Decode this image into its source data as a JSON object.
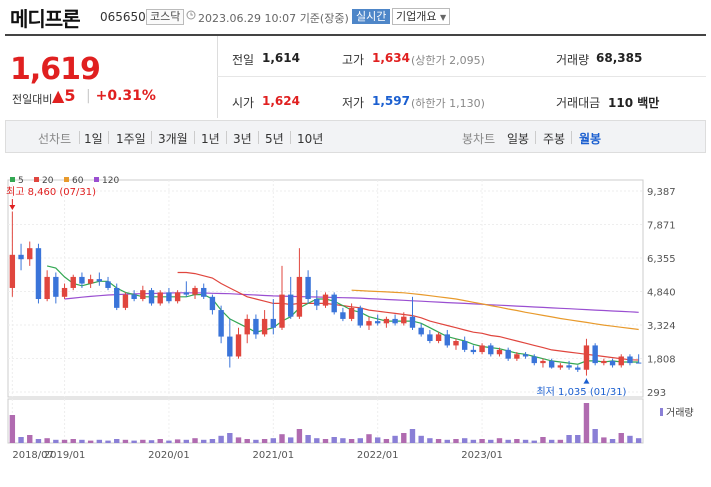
{
  "stock": {
    "name": "메디프론",
    "code": "065650",
    "market": "코스닥",
    "datetime": "2023.06.29 10:07",
    "as_of": "기준(장중)",
    "realtime_btn": "실시간",
    "company_info_btn": "기업개요"
  },
  "quote": {
    "price": "1,619",
    "change_label": "전일대비",
    "change_arrow": "▲",
    "change_value": "5",
    "change_pct": "+0.31%",
    "prev_close_label": "전일",
    "prev_close": "1,614",
    "high_label": "고가",
    "high": "1,634",
    "upper_limit": "(상한가 2,095)",
    "volume_label": "거래량",
    "volume": "68,385",
    "open_label": "시가",
    "open": "1,624",
    "low_label": "저가",
    "low": "1,597",
    "lower_limit": "(하한가 1,130)",
    "value_label": "거래대금",
    "value": "110 백만"
  },
  "toolbar": {
    "line_chart": "선차트",
    "periods": [
      "1일",
      "1주일",
      "3개월",
      "1년",
      "3년",
      "5년",
      "10년"
    ],
    "candle_chart": "봉차트",
    "candle_periods": [
      "일봉",
      "주봉",
      "월봉"
    ],
    "active_candle": "월봉"
  },
  "chart_data": {
    "type": "candlestick",
    "legend": [
      {
        "name": "5",
        "color": "#33a853"
      },
      {
        "name": "20",
        "color": "#e0463e"
      },
      {
        "name": "60",
        "color": "#e89a2c"
      },
      {
        "name": "120",
        "color": "#9a4fd1"
      }
    ],
    "yticks": [
      "9,387",
      "7,871",
      "6,355",
      "4,840",
      "3,324",
      "1,808",
      "293"
    ],
    "ylim": [
      293,
      9387
    ],
    "xticks": [
      "2018/07",
      "2019/01",
      "2020/01",
      "2021/01",
      "2022/01",
      "2023/01"
    ],
    "high_marker": "최고 8,460 (07/31)",
    "low_marker": "최저 1,035 (01/31)",
    "volume_label": "거래량",
    "candles": [
      {
        "o": 5000,
        "h": 8460,
        "l": 4600,
        "c": 6500
      },
      {
        "o": 6500,
        "h": 7000,
        "l": 5800,
        "c": 6300
      },
      {
        "o": 6300,
        "h": 7100,
        "l": 6000,
        "c": 6800
      },
      {
        "o": 6800,
        "h": 7000,
        "l": 4300,
        "c": 4500
      },
      {
        "o": 4500,
        "h": 5800,
        "l": 4400,
        "c": 5500
      },
      {
        "o": 5500,
        "h": 5700,
        "l": 4300,
        "c": 4600
      },
      {
        "o": 4600,
        "h": 5200,
        "l": 4500,
        "c": 5000
      },
      {
        "o": 5000,
        "h": 5600,
        "l": 4900,
        "c": 5500
      },
      {
        "o": 5500,
        "h": 5700,
        "l": 5000,
        "c": 5200
      },
      {
        "o": 5200,
        "h": 5600,
        "l": 5000,
        "c": 5400
      },
      {
        "o": 5400,
        "h": 5700,
        "l": 5100,
        "c": 5300
      },
      {
        "o": 5300,
        "h": 5500,
        "l": 4900,
        "c": 5000
      },
      {
        "o": 5000,
        "h": 5200,
        "l": 4000,
        "c": 4100
      },
      {
        "o": 4100,
        "h": 4800,
        "l": 4000,
        "c": 4700
      },
      {
        "o": 4700,
        "h": 4900,
        "l": 4400,
        "c": 4500
      },
      {
        "o": 4500,
        "h": 5100,
        "l": 4400,
        "c": 4900
      },
      {
        "o": 4900,
        "h": 5000,
        "l": 4200,
        "c": 4300
      },
      {
        "o": 4300,
        "h": 4900,
        "l": 4200,
        "c": 4800
      },
      {
        "o": 4800,
        "h": 5000,
        "l": 4300,
        "c": 4400
      },
      {
        "o": 4400,
        "h": 4900,
        "l": 4300,
        "c": 4800
      },
      {
        "o": 4800,
        "h": 5300,
        "l": 4600,
        "c": 4700
      },
      {
        "o": 4700,
        "h": 5100,
        "l": 4500,
        "c": 5000
      },
      {
        "o": 5000,
        "h": 5200,
        "l": 4500,
        "c": 4600
      },
      {
        "o": 4600,
        "h": 4700,
        "l": 3800,
        "c": 4000
      },
      {
        "o": 4000,
        "h": 4200,
        "l": 2500,
        "c": 2800
      },
      {
        "o": 2800,
        "h": 3600,
        "l": 1400,
        "c": 1900
      },
      {
        "o": 1900,
        "h": 3200,
        "l": 1800,
        "c": 2900
      },
      {
        "o": 2900,
        "h": 3800,
        "l": 2500,
        "c": 3600
      },
      {
        "o": 3600,
        "h": 3800,
        "l": 2700,
        "c": 2900
      },
      {
        "o": 2900,
        "h": 4000,
        "l": 2800,
        "c": 3600
      },
      {
        "o": 3600,
        "h": 4500,
        "l": 2900,
        "c": 3200
      },
      {
        "o": 3200,
        "h": 6000,
        "l": 3100,
        "c": 4700
      },
      {
        "o": 4700,
        "h": 5500,
        "l": 3600,
        "c": 3700
      },
      {
        "o": 3700,
        "h": 6800,
        "l": 3600,
        "c": 5500
      },
      {
        "o": 5500,
        "h": 5800,
        "l": 4300,
        "c": 4500
      },
      {
        "o": 4500,
        "h": 4900,
        "l": 4000,
        "c": 4200
      },
      {
        "o": 4200,
        "h": 4800,
        "l": 4100,
        "c": 4700
      },
      {
        "o": 4700,
        "h": 4800,
        "l": 3800,
        "c": 3900
      },
      {
        "o": 3900,
        "h": 4100,
        "l": 3500,
        "c": 3600
      },
      {
        "o": 3600,
        "h": 4300,
        "l": 3500,
        "c": 4100
      },
      {
        "o": 4100,
        "h": 4200,
        "l": 3200,
        "c": 3300
      },
      {
        "o": 3300,
        "h": 3700,
        "l": 3100,
        "c": 3500
      },
      {
        "o": 3500,
        "h": 3800,
        "l": 3300,
        "c": 3400
      },
      {
        "o": 3400,
        "h": 3700,
        "l": 3200,
        "c": 3600
      },
      {
        "o": 3600,
        "h": 3800,
        "l": 3300,
        "c": 3400
      },
      {
        "o": 3400,
        "h": 3900,
        "l": 3300,
        "c": 3700
      },
      {
        "o": 3700,
        "h": 4600,
        "l": 3100,
        "c": 3200
      },
      {
        "o": 3200,
        "h": 3400,
        "l": 2800,
        "c": 2900
      },
      {
        "o": 2900,
        "h": 3100,
        "l": 2500,
        "c": 2600
      },
      {
        "o": 2600,
        "h": 3000,
        "l": 2500,
        "c": 2900
      },
      {
        "o": 2900,
        "h": 3100,
        "l": 2300,
        "c": 2400
      },
      {
        "o": 2400,
        "h": 2700,
        "l": 2200,
        "c": 2600
      },
      {
        "o": 2600,
        "h": 2800,
        "l": 2100,
        "c": 2200
      },
      {
        "o": 2200,
        "h": 2400,
        "l": 2000,
        "c": 2100
      },
      {
        "o": 2100,
        "h": 2500,
        "l": 2000,
        "c": 2400
      },
      {
        "o": 2400,
        "h": 2500,
        "l": 1900,
        "c": 2000
      },
      {
        "o": 2000,
        "h": 2300,
        "l": 1900,
        "c": 2200
      },
      {
        "o": 2200,
        "h": 2300,
        "l": 1700,
        "c": 1800
      },
      {
        "o": 1800,
        "h": 2100,
        "l": 1700,
        "c": 2000
      },
      {
        "o": 2000,
        "h": 2100,
        "l": 1800,
        "c": 1900
      },
      {
        "o": 1900,
        "h": 2000,
        "l": 1500,
        "c": 1600
      },
      {
        "o": 1600,
        "h": 1800,
        "l": 1400,
        "c": 1700
      },
      {
        "o": 1700,
        "h": 1800,
        "l": 1350,
        "c": 1400
      },
      {
        "o": 1400,
        "h": 1600,
        "l": 1300,
        "c": 1500
      },
      {
        "o": 1500,
        "h": 1700,
        "l": 1300,
        "c": 1400
      },
      {
        "o": 1400,
        "h": 1500,
        "l": 1200,
        "c": 1300
      },
      {
        "o": 1300,
        "h": 2700,
        "l": 1035,
        "c": 2400
      },
      {
        "o": 2400,
        "h": 2500,
        "l": 1500,
        "c": 1600
      },
      {
        "o": 1600,
        "h": 1800,
        "l": 1500,
        "c": 1700
      },
      {
        "o": 1700,
        "h": 1800,
        "l": 1400,
        "c": 1500
      },
      {
        "o": 1500,
        "h": 2000,
        "l": 1400,
        "c": 1900
      },
      {
        "o": 1900,
        "h": 2000,
        "l": 1500,
        "c": 1600
      },
      {
        "o": 1624,
        "h": 2000,
        "l": 1597,
        "c": 1619
      }
    ],
    "ma5": [
      null,
      null,
      null,
      null,
      6000,
      5900,
      5500,
      5200,
      5100,
      5200,
      5300,
      5300,
      5000,
      4800,
      4700,
      4600,
      4600,
      4600,
      4600,
      4600,
      4600,
      4700,
      4700,
      4500,
      4000,
      3600,
      3400,
      3200,
      3000,
      3100,
      3200,
      3500,
      3700,
      4100,
      4300,
      4500,
      4500,
      4400,
      4200,
      4000,
      3900,
      3700,
      3600,
      3500,
      3500,
      3500,
      3500,
      3400,
      3200,
      3000,
      2800,
      2700,
      2600,
      2450,
      2350,
      2300,
      2250,
      2150,
      2050,
      2000,
      1900,
      1800,
      1700,
      1650,
      1600,
      1550,
      1700,
      1700,
      1650,
      1700,
      1650,
      1650,
      1650
    ],
    "ma20": [
      null,
      null,
      null,
      null,
      null,
      null,
      null,
      null,
      null,
      null,
      null,
      null,
      null,
      null,
      null,
      null,
      null,
      null,
      null,
      5700,
      5700,
      5650,
      5550,
      5450,
      5200,
      5000,
      4800,
      4600,
      4500,
      4400,
      4300,
      4300,
      4250,
      4300,
      4300,
      4300,
      4300,
      4250,
      4200,
      4150,
      4100,
      4000,
      3950,
      3900,
      3850,
      3800,
      3750,
      3650,
      3500,
      3400,
      3300,
      3200,
      3100,
      3000,
      2950,
      2850,
      2800,
      2700,
      2600,
      2500,
      2400,
      2300,
      2200,
      2150,
      2100,
      2050,
      2000,
      1950,
      1900,
      1850,
      1800,
      1750,
      1740
    ],
    "ma60": [
      null,
      null,
      null,
      null,
      null,
      null,
      null,
      null,
      null,
      null,
      null,
      null,
      null,
      null,
      null,
      null,
      null,
      null,
      null,
      null,
      null,
      null,
      null,
      null,
      null,
      null,
      null,
      null,
      null,
      null,
      null,
      null,
      null,
      null,
      null,
      null,
      null,
      null,
      null,
      4900,
      4880,
      4860,
      4840,
      4820,
      4800,
      4780,
      4740,
      4700,
      4650,
      4600,
      4550,
      4500,
      4430,
      4350,
      4280,
      4200,
      4130,
      4050,
      3980,
      3900,
      3830,
      3760,
      3690,
      3620,
      3560,
      3500,
      3440,
      3380,
      3320,
      3270,
      3220,
      3170,
      3120
    ],
    "ma120": [
      null,
      null,
      null,
      null,
      null,
      null,
      4500,
      4540,
      4580,
      4620,
      4650,
      4680,
      4700,
      4720,
      4730,
      4740,
      4750,
      4760,
      4770,
      4780,
      4780,
      4780,
      4770,
      4760,
      4750,
      4740,
      4720,
      4700,
      4680,
      4660,
      4640,
      4630,
      4620,
      4610,
      4600,
      4590,
      4580,
      4570,
      4560,
      4550,
      4540,
      4520,
      4500,
      4480,
      4460,
      4440,
      4420,
      4400,
      4380,
      4360,
      4340,
      4320,
      4300,
      4280,
      4260,
      4240,
      4220,
      4200,
      4180,
      4160,
      4140,
      4120,
      4100,
      4080,
      4060,
      4040,
      4020,
      4000,
      3980,
      3960,
      3940,
      3920,
      3900
    ],
    "volume": [
      70,
      15,
      20,
      10,
      12,
      8,
      8,
      10,
      8,
      6,
      8,
      6,
      10,
      8,
      6,
      8,
      7,
      10,
      6,
      9,
      8,
      12,
      8,
      10,
      18,
      25,
      14,
      10,
      8,
      10,
      12,
      22,
      14,
      35,
      20,
      12,
      10,
      15,
      12,
      10,
      12,
      22,
      14,
      10,
      18,
      25,
      35,
      18,
      12,
      10,
      8,
      10,
      12,
      8,
      10,
      8,
      12,
      8,
      10,
      8,
      6,
      15,
      8,
      8,
      20,
      20,
      100,
      35,
      14,
      10,
      25,
      18,
      12
    ]
  }
}
